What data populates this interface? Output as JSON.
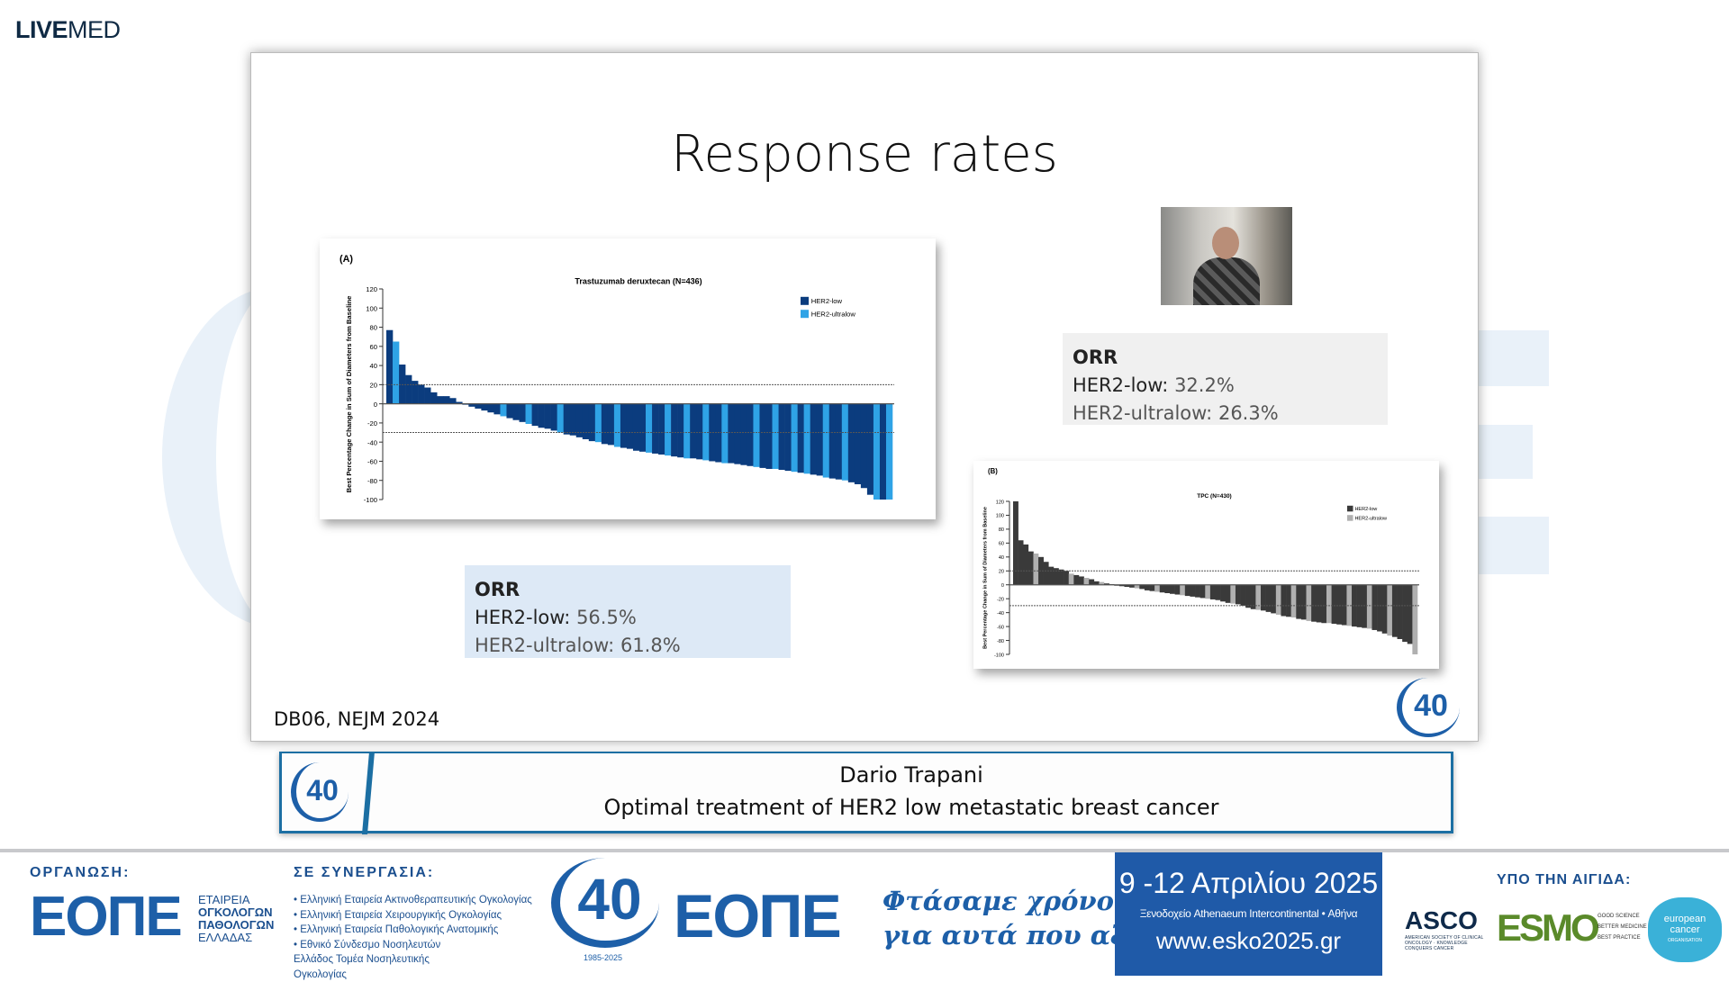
{
  "brand": {
    "bold": "LIVE",
    "light": "MED"
  },
  "slide": {
    "title": "Response rates",
    "reference": "DB06, NEJM 2024",
    "logo_text": "40",
    "orr_a": {
      "heading": "ORR",
      "low_label": "HER2-low:",
      "low_value": "56.5%",
      "ultralow_label": "HER2-ultralow:",
      "ultralow_value": "61.8%"
    },
    "orr_b": {
      "heading": "ORR",
      "low_label": "HER2-low:",
      "low_value": "32.2%",
      "ultralow_label": "HER2-ultralow:",
      "ultralow_value": "26.3%"
    }
  },
  "chart_data": [
    {
      "type": "bar",
      "panel": "(A)",
      "title": "Trastuzumab deruxtecan (N=436)",
      "ylabel": "Best Percentage Change in Sum of Diameters from Baseline",
      "ylim": [
        -100,
        120
      ],
      "yticks": [
        120,
        100,
        80,
        60,
        40,
        20,
        0,
        -20,
        -40,
        -60,
        -80,
        -100
      ],
      "reference_lines": [
        20,
        -30
      ],
      "legend_position": "top-right",
      "series": [
        {
          "name": "HER2-low",
          "color": "#0b3c7e"
        },
        {
          "name": "HER2-ultralow",
          "color": "#2fa3e6"
        }
      ],
      "values": [
        77,
        65,
        41,
        30,
        24,
        20,
        17,
        12,
        8,
        8,
        6,
        2,
        0,
        -3,
        -5,
        -7,
        -9,
        -11,
        -13,
        -15,
        -17,
        -19,
        -21,
        -23,
        -25,
        -26,
        -28,
        -30,
        -32,
        -33,
        -35,
        -37,
        -39,
        -40,
        -42,
        -43,
        -45,
        -46,
        -47,
        -49,
        -50,
        -51,
        -52,
        -53,
        -54,
        -55,
        -56,
        -57,
        -57,
        -58,
        -59,
        -60,
        -61,
        -62,
        -62,
        -63,
        -64,
        -65,
        -66,
        -67,
        -68,
        -68,
        -69,
        -70,
        -71,
        -72,
        -73,
        -74,
        -75,
        -77,
        -78,
        -79,
        -80,
        -82,
        -84,
        -88,
        -95,
        -100,
        -100,
        -100
      ],
      "ultralow_indices": [
        1,
        18,
        22,
        27,
        33,
        36,
        41,
        44,
        47,
        50,
        53,
        58,
        61,
        64,
        66,
        69,
        72,
        77,
        79
      ]
    },
    {
      "type": "bar",
      "panel": "(B)",
      "title": "TPC (N=430)",
      "ylabel": "Best Percentage Change in Sum of Diameters from Baseline",
      "ylim": [
        -100,
        120
      ],
      "yticks": [
        120,
        100,
        80,
        60,
        40,
        20,
        0,
        -20,
        -40,
        -60,
        -80,
        -100
      ],
      "reference_lines": [
        20,
        -30
      ],
      "legend_position": "top-right",
      "series": [
        {
          "name": "HER2-low",
          "color": "#3a3a3a"
        },
        {
          "name": "HER2-ultralow",
          "color": "#b0b0b0"
        }
      ],
      "values": [
        120,
        64,
        58,
        48,
        45,
        40,
        33,
        26,
        24,
        22,
        20,
        16,
        14,
        12,
        10,
        8,
        5,
        4,
        2,
        1,
        0,
        -2,
        -3,
        -4,
        -5,
        -6,
        -8,
        -9,
        -10,
        -11,
        -12,
        -13,
        -14,
        -15,
        -16,
        -17,
        -18,
        -19,
        -20,
        -21,
        -22,
        -24,
        -26,
        -27,
        -28,
        -30,
        -33,
        -35,
        -36,
        -37,
        -39,
        -41,
        -43,
        -45,
        -46,
        -47,
        -49,
        -50,
        -52,
        -53,
        -54,
        -55,
        -55,
        -56,
        -57,
        -58,
        -59,
        -60,
        -61,
        -62,
        -63,
        -65,
        -67,
        -70,
        -73,
        -75,
        -78,
        -82,
        -85,
        -100
      ],
      "ultralow_indices": [
        4,
        11,
        14,
        17,
        24,
        28,
        33,
        38,
        43,
        48,
        52,
        55,
        58,
        62,
        66,
        70,
        74,
        79
      ]
    }
  ],
  "namebar": {
    "speaker": "Dario Trapani",
    "talk": "Optimal treatment of HER2 low metastatic breast cancer",
    "logo_text": "40"
  },
  "footer": {
    "organizer_label": "ΟΡΓΑΝΩΣΗ:",
    "eope": "ΕΟΠΕ",
    "eope_sub": [
      "ΕΤΑΙΡΕΙΑ",
      "ΟΓΚΟΛΟΓΩΝ",
      "ΠΑΘΟΛΟΓΩΝ",
      "ΕΛΛΑΔΑΣ"
    ],
    "partners_label": "ΣΕ ΣΥΝΕΡΓΑΣΙΑ:",
    "partners": [
      "Ελληνική Εταιρεία Ακτινοθεραπευτικής Ογκολογίας",
      "Ελληνική Εταιρεία Χειρουργικής Ογκολογίας",
      "Ελληνική Εταιρεία Παθολογικής Ανατομικής",
      "Εθνικό Σύνδεσμο Νοσηλευτών Ελλάδος Τομέα Νοσηλευτικής Ογκολογίας"
    ],
    "anniv": "40",
    "anniv_years": "1985-2025",
    "slogan": [
      "Φτάσαμε χρόνο",
      "για αυτά που αξίζουν"
    ],
    "dates": "9 -12 Απριλίου 2025",
    "venue": "Ξενοδοχείο Athenaeum Intercontinental • Αθήνα",
    "website": "www.esko2025.gr",
    "auspices_label": "ΥΠΟ ΤΗΝ ΑΙΓΙΔΑ:",
    "asco": "ASCO",
    "asco_sub": "AMERICAN SOCIETY OF CLINICAL ONCOLOGY · KNOWLEDGE CONQUERS CANCER",
    "esmo": "ESMO",
    "esmo_sub": [
      "GOOD SCIENCE",
      "BETTER MEDICINE",
      "BEST PRACTICE"
    ],
    "eco": [
      "european",
      "cancer",
      "ORGANISATION"
    ]
  }
}
